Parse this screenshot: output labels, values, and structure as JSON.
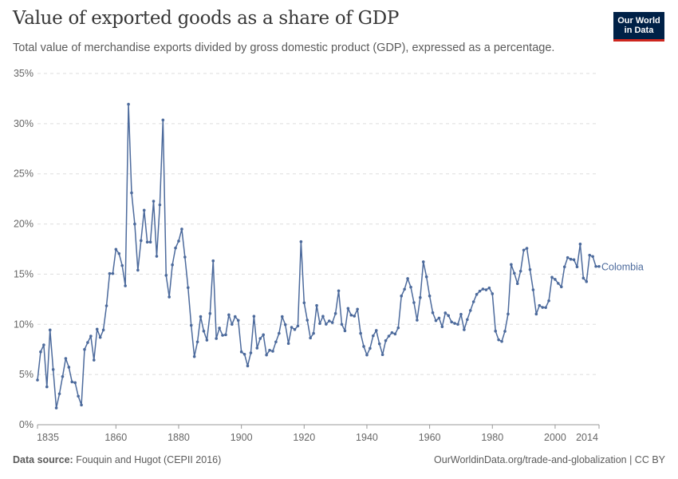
{
  "header": {
    "title": "Value of exported goods as a share of GDP",
    "subtitle": "Total value of merchandise exports divided by gross domestic product (GDP), expressed as a percentage.",
    "logo": "Our World in Data",
    "logo_line1": "Our World",
    "logo_line2": "in Data"
  },
  "footer": {
    "source_label": "Data source:",
    "source": "Fouquin and Hugot (CEPII 2016)",
    "url": "OurWorldinData.org/trade-and-globalization | CC BY"
  },
  "chart_data": {
    "type": "line",
    "title": "Value of exported goods as a share of GDP",
    "xlabel": "",
    "ylabel": "",
    "xlim": [
      1835,
      2014
    ],
    "ylim": [
      0,
      35
    ],
    "x_ticks": [
      "1835",
      "1860",
      "1880",
      "1900",
      "1920",
      "1940",
      "1960",
      "1980",
      "2000",
      "2014"
    ],
    "y_ticks": [
      "0%",
      "5%",
      "10%",
      "15%",
      "20%",
      "25%",
      "30%",
      "35%"
    ],
    "grid": "horizontal dashed",
    "line_color": "#4C6A9C",
    "series": [
      {
        "name": "Colombia",
        "start_year": 1835,
        "values": [
          4.45,
          7.26,
          7.95,
          3.77,
          9.44,
          5.5,
          1.67,
          3.08,
          4.8,
          6.6,
          5.73,
          4.27,
          4.19,
          2.84,
          1.96,
          7.5,
          8.19,
          8.83,
          6.44,
          9.52,
          8.7,
          9.44,
          11.85,
          15.06,
          15.06,
          17.48,
          17.05,
          15.86,
          13.84,
          31.93,
          23.1,
          20.0,
          15.4,
          18.35,
          21.37,
          18.2,
          18.2,
          22.27,
          16.78,
          21.9,
          30.36,
          14.88,
          12.73,
          15.93,
          17.61,
          18.3,
          19.49,
          16.7,
          13.66,
          9.9,
          6.79,
          8.25,
          10.77,
          9.33,
          8.43,
          11.08,
          16.33,
          8.59,
          9.63,
          8.91,
          8.96,
          10.95,
          10.0,
          10.77,
          10.4,
          7.26,
          7.02,
          5.86,
          7.16,
          10.8,
          7.64,
          8.59,
          8.96,
          6.95,
          7.42,
          7.32,
          8.25,
          9.1,
          10.77,
          9.97,
          8.09,
          9.7,
          9.49,
          9.84,
          18.24,
          12.15,
          10.42,
          8.64,
          9.1,
          11.88,
          10.08,
          10.8,
          10.02,
          10.34,
          10.18,
          11.08,
          13.34,
          10.0,
          9.36,
          11.59,
          10.92,
          10.82,
          11.51,
          9.1,
          7.8,
          6.95,
          7.61,
          8.86,
          9.39,
          8.06,
          6.98,
          8.38,
          8.83,
          9.17,
          9.04,
          9.65,
          12.83,
          13.5,
          14.56,
          13.71,
          12.17,
          10.42,
          12.67,
          16.23,
          14.74,
          12.83,
          11.16,
          10.37,
          10.63,
          9.76,
          11.14,
          10.87,
          10.24,
          10.1,
          10.0,
          11.0,
          9.47,
          10.48,
          11.38,
          12.25,
          12.99,
          13.31,
          13.52,
          13.44,
          13.63,
          13.05,
          9.33,
          8.46,
          8.3,
          9.31,
          11.03,
          15.96,
          15.09,
          14.06,
          15.3,
          17.4,
          17.58,
          15.46,
          13.44,
          11.03,
          11.88,
          11.69,
          11.67,
          12.35,
          14.69,
          14.48,
          14.08,
          13.74,
          15.73,
          16.65,
          16.49,
          16.44,
          15.73,
          18.0,
          14.61,
          14.26,
          16.89,
          16.76,
          15.77,
          15.77
        ]
      }
    ]
  }
}
